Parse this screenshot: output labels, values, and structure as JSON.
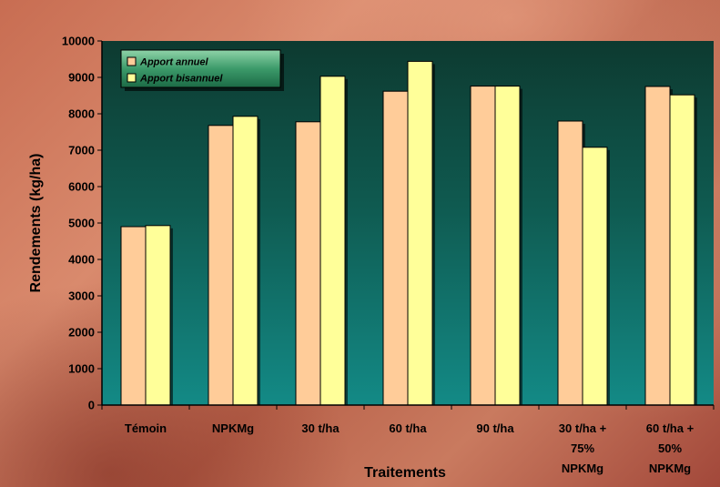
{
  "chart_data": {
    "type": "bar",
    "title": "",
    "xlabel": "Traitements",
    "ylabel": "Rendements (kg/ha)",
    "ylim": [
      0,
      10000
    ],
    "yticks": [
      0,
      1000,
      2000,
      3000,
      4000,
      5000,
      6000,
      7000,
      8000,
      9000,
      10000
    ],
    "categories": [
      [
        "Témoin"
      ],
      [
        "NPKMg"
      ],
      [
        "30 t/ha"
      ],
      [
        "60 t/ha"
      ],
      [
        "90 t/ha"
      ],
      [
        "30 t/ha +",
        "75%",
        "NPKMg"
      ],
      [
        "60 t/ha +",
        "50%",
        "NPKMg"
      ]
    ],
    "series": [
      {
        "name": "Apport annuel",
        "color": "#ffcc99",
        "values": [
          4900,
          7680,
          7780,
          8620,
          8760,
          7800,
          8750
        ]
      },
      {
        "name": "Apport bisannuel",
        "color": "#ffff99",
        "values": [
          4930,
          7930,
          9030,
          9440,
          8760,
          7080,
          8520
        ]
      }
    ],
    "grid": false,
    "legend_position": "top-left",
    "plot_background": "gradient dark teal to teal"
  }
}
